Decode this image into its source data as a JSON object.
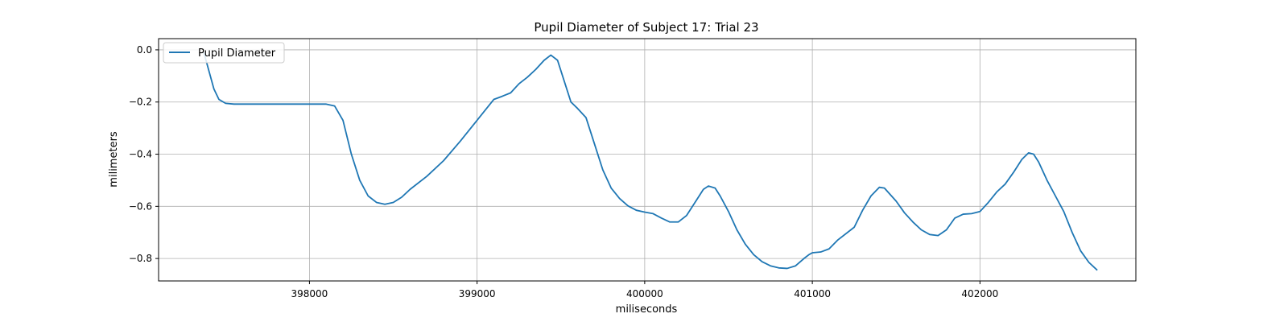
{
  "chart_data": {
    "type": "line",
    "title": "Pupil Diameter of Subject 17: Trial 23",
    "xlabel": "miliseconds",
    "ylabel": "milimeters",
    "xlim": [
      397100,
      402930
    ],
    "ylim": [
      -0.886,
      0.043
    ],
    "xticks": [
      398000,
      399000,
      400000,
      401000,
      402000
    ],
    "yticks": [
      0.0,
      -0.2,
      -0.4,
      -0.6,
      -0.8
    ],
    "xtick_labels": [
      "398000",
      "399000",
      "400000",
      "401000",
      "402000"
    ],
    "ytick_labels": [
      "0.0",
      "−0.2",
      "−0.4",
      "−0.6",
      "−0.8"
    ],
    "grid": true,
    "legend": {
      "position": "upper-left"
    },
    "series": [
      {
        "name": "Pupil Diameter",
        "color": "#1f77b4",
        "points": [
          [
            397370,
            -0.01
          ],
          [
            397400,
            -0.08
          ],
          [
            397430,
            -0.15
          ],
          [
            397460,
            -0.19
          ],
          [
            397500,
            -0.205
          ],
          [
            397550,
            -0.208
          ],
          [
            397700,
            -0.208
          ],
          [
            397900,
            -0.208
          ],
          [
            398100,
            -0.208
          ],
          [
            398150,
            -0.215
          ],
          [
            398200,
            -0.27
          ],
          [
            398250,
            -0.4
          ],
          [
            398300,
            -0.5
          ],
          [
            398350,
            -0.56
          ],
          [
            398400,
            -0.585
          ],
          [
            398450,
            -0.592
          ],
          [
            398500,
            -0.585
          ],
          [
            398550,
            -0.565
          ],
          [
            398600,
            -0.535
          ],
          [
            398700,
            -0.485
          ],
          [
            398800,
            -0.425
          ],
          [
            398900,
            -0.35
          ],
          [
            399000,
            -0.27
          ],
          [
            399050,
            -0.23
          ],
          [
            399100,
            -0.19
          ],
          [
            399150,
            -0.178
          ],
          [
            399200,
            -0.165
          ],
          [
            399250,
            -0.13
          ],
          [
            399300,
            -0.105
          ],
          [
            399350,
            -0.075
          ],
          [
            399400,
            -0.04
          ],
          [
            399440,
            -0.02
          ],
          [
            399480,
            -0.04
          ],
          [
            399520,
            -0.12
          ],
          [
            399560,
            -0.2
          ],
          [
            399600,
            -0.225
          ],
          [
            399650,
            -0.26
          ],
          [
            399700,
            -0.36
          ],
          [
            399750,
            -0.46
          ],
          [
            399800,
            -0.53
          ],
          [
            399850,
            -0.57
          ],
          [
            399900,
            -0.598
          ],
          [
            399950,
            -0.615
          ],
          [
            400000,
            -0.622
          ],
          [
            400050,
            -0.628
          ],
          [
            400100,
            -0.645
          ],
          [
            400150,
            -0.66
          ],
          [
            400200,
            -0.66
          ],
          [
            400250,
            -0.635
          ],
          [
            400300,
            -0.585
          ],
          [
            400350,
            -0.535
          ],
          [
            400380,
            -0.522
          ],
          [
            400420,
            -0.53
          ],
          [
            400450,
            -0.56
          ],
          [
            400500,
            -0.62
          ],
          [
            400550,
            -0.69
          ],
          [
            400600,
            -0.745
          ],
          [
            400650,
            -0.785
          ],
          [
            400700,
            -0.812
          ],
          [
            400750,
            -0.828
          ],
          [
            400800,
            -0.836
          ],
          [
            400850,
            -0.838
          ],
          [
            400900,
            -0.828
          ],
          [
            400950,
            -0.8
          ],
          [
            400980,
            -0.785
          ],
          [
            401000,
            -0.778
          ],
          [
            401050,
            -0.775
          ],
          [
            401100,
            -0.763
          ],
          [
            401150,
            -0.73
          ],
          [
            401250,
            -0.68
          ],
          [
            401300,
            -0.615
          ],
          [
            401350,
            -0.56
          ],
          [
            401400,
            -0.527
          ],
          [
            401430,
            -0.53
          ],
          [
            401500,
            -0.58
          ],
          [
            401550,
            -0.625
          ],
          [
            401600,
            -0.66
          ],
          [
            401650,
            -0.69
          ],
          [
            401700,
            -0.708
          ],
          [
            401750,
            -0.712
          ],
          [
            401800,
            -0.69
          ],
          [
            401850,
            -0.645
          ],
          [
            401900,
            -0.63
          ],
          [
            401950,
            -0.628
          ],
          [
            402000,
            -0.62
          ],
          [
            402050,
            -0.585
          ],
          [
            402100,
            -0.545
          ],
          [
            402150,
            -0.515
          ],
          [
            402200,
            -0.47
          ],
          [
            402250,
            -0.42
          ],
          [
            402290,
            -0.395
          ],
          [
            402320,
            -0.4
          ],
          [
            402350,
            -0.43
          ],
          [
            402400,
            -0.5
          ],
          [
            402450,
            -0.56
          ],
          [
            402500,
            -0.62
          ],
          [
            402550,
            -0.7
          ],
          [
            402600,
            -0.77
          ],
          [
            402650,
            -0.815
          ],
          [
            402700,
            -0.845
          ]
        ]
      }
    ]
  }
}
